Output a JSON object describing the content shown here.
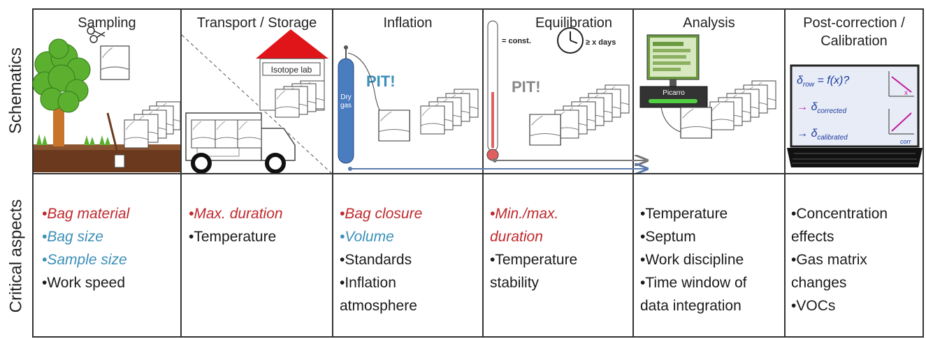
{
  "row_labels": {
    "schematics": "Schematics",
    "critical": "Critical aspects"
  },
  "columns": [
    {
      "id": "sampling",
      "title": [
        "Sampling"
      ],
      "aspects": [
        {
          "text": "•Bag material",
          "style": "red"
        },
        {
          "text": "•Bag size",
          "style": "blue"
        },
        {
          "text": "•Sample size",
          "style": "blue"
        },
        {
          "text": "•Work speed",
          "style": "black"
        }
      ]
    },
    {
      "id": "transport",
      "title": [
        "Transport / Storage"
      ],
      "aspects": [
        {
          "text": "•Max. duration",
          "style": "red"
        },
        {
          "text": "•Temperature",
          "style": "black"
        }
      ]
    },
    {
      "id": "inflation",
      "title": [
        "Inflation"
      ],
      "aspects": [
        {
          "text": "•Bag closure",
          "style": "red"
        },
        {
          "text": "•Volume",
          "style": "blue"
        },
        {
          "text": "•Standards",
          "style": "black"
        },
        {
          "text": "•Inflation",
          "style": "black"
        },
        {
          "text": "atmosphere",
          "style": "black"
        }
      ]
    },
    {
      "id": "equilibration",
      "title": [
        "Equilibration"
      ],
      "aspects": [
        {
          "text": "•Min./max.",
          "style": "red"
        },
        {
          "text": "duration",
          "style": "red"
        },
        {
          "text": "•Temperature",
          "style": "black"
        },
        {
          "text": "stability",
          "style": "black"
        }
      ]
    },
    {
      "id": "analysis",
      "title": [
        "Analysis"
      ],
      "aspects": [
        {
          "text": "•Temperature",
          "style": "black"
        },
        {
          "text": "•Septum",
          "style": "black"
        },
        {
          "text": "•Work discipline",
          "style": "black"
        },
        {
          "text": "•Time window of",
          "style": "black"
        },
        {
          "text": "data integration",
          "style": "black"
        }
      ]
    },
    {
      "id": "postcorrection",
      "title": [
        "Post-correction /",
        "Calibration"
      ],
      "aspects": [
        {
          "text": "•Concentration",
          "style": "black"
        },
        {
          "text": "effects",
          "style": "black"
        },
        {
          "text": "•Gas matrix",
          "style": "black"
        },
        {
          "text": "changes",
          "style": "black"
        },
        {
          "text": "•VOCs",
          "style": "black"
        }
      ]
    }
  ],
  "schematic_labels": {
    "isotope_lab": "Isotope lab",
    "dry_gas": [
      "Dry",
      "gas"
    ],
    "pit": "PIT!",
    "const": "= const.",
    "days": "≥ x days",
    "picarro": "Picarro",
    "delta_formula": "δ",
    "delta_sub": "row",
    "delta_eq": " = f(x)?",
    "corrected": "corrected",
    "calibrated": "calibrated",
    "corr": "corr",
    "x": "x"
  },
  "colors": {
    "red": "#c0282c",
    "blue": "#3b8fb8",
    "tree": "#5cb030",
    "trunk": "#c8742a",
    "soil": "#6b3a1e",
    "roof": "#e0151a",
    "cylinder": "#4a7cc0",
    "arrow": "#5a7ab0",
    "formula_pink": "#c21a9a",
    "formula_blue": "#1a3aa0"
  }
}
